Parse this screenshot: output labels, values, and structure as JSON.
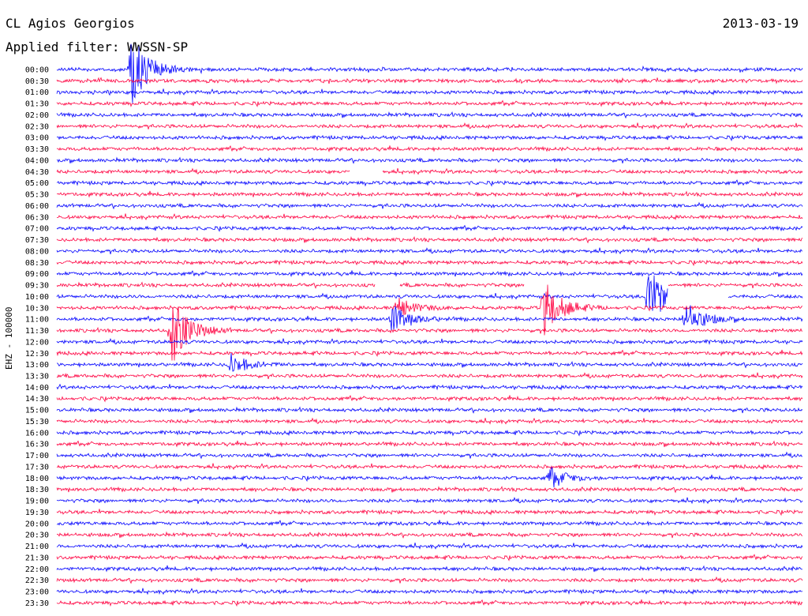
{
  "header": {
    "station": "CL Agios Georgios",
    "date": "2013-03-19",
    "filter_label": "Applied filter: WWSSN-SP"
  },
  "channel_label": "EHZ - 100000",
  "colors": {
    "trace_even": "#0000ff",
    "trace_odd": "#ff0040",
    "background": "#ffffff"
  },
  "time_labels": [
    "00:00",
    "00:30",
    "01:00",
    "01:30",
    "02:00",
    "02:30",
    "03:00",
    "03:30",
    "04:00",
    "04:30",
    "05:00",
    "05:30",
    "06:00",
    "06:30",
    "07:00",
    "07:30",
    "08:00",
    "08:30",
    "09:00",
    "09:30",
    "10:00",
    "10:30",
    "11:00",
    "11:30",
    "12:00",
    "12:30",
    "13:00",
    "13:30",
    "14:00",
    "14:30",
    "15:00",
    "15:30",
    "16:00",
    "16:30",
    "17:00",
    "17:30",
    "18:00",
    "18:30",
    "19:00",
    "19:30",
    "20:00",
    "20:30",
    "21:00",
    "21:30",
    "22:00",
    "22:30",
    "23:00",
    "23:30"
  ],
  "events": [
    {
      "row": 0,
      "minute": 3.0,
      "amplitude": 1.0
    },
    {
      "row": 20,
      "minute": 23.8,
      "amplitude": 0.9
    },
    {
      "row": 21,
      "minute": 19.6,
      "amplitude": 0.8
    },
    {
      "row": 21,
      "minute": 13.7,
      "amplitude": 0.3
    },
    {
      "row": 22,
      "minute": 13.5,
      "amplitude": 0.4
    },
    {
      "row": 22,
      "minute": 25.3,
      "amplitude": 0.5
    },
    {
      "row": 23,
      "minute": 4.6,
      "amplitude": 1.0
    },
    {
      "row": 26,
      "minute": 7.0,
      "amplitude": 0.3
    },
    {
      "row": 36,
      "minute": 19.8,
      "amplitude": 0.3
    }
  ],
  "gaps": [
    {
      "row": 9,
      "start": 11.8,
      "end": 13.1
    },
    {
      "row": 19,
      "start": 12.8,
      "end": 13.8
    },
    {
      "row": 19,
      "start": 18.8,
      "end": 24.6
    },
    {
      "row": 20,
      "start": 24.6,
      "end": 27.0
    }
  ]
}
